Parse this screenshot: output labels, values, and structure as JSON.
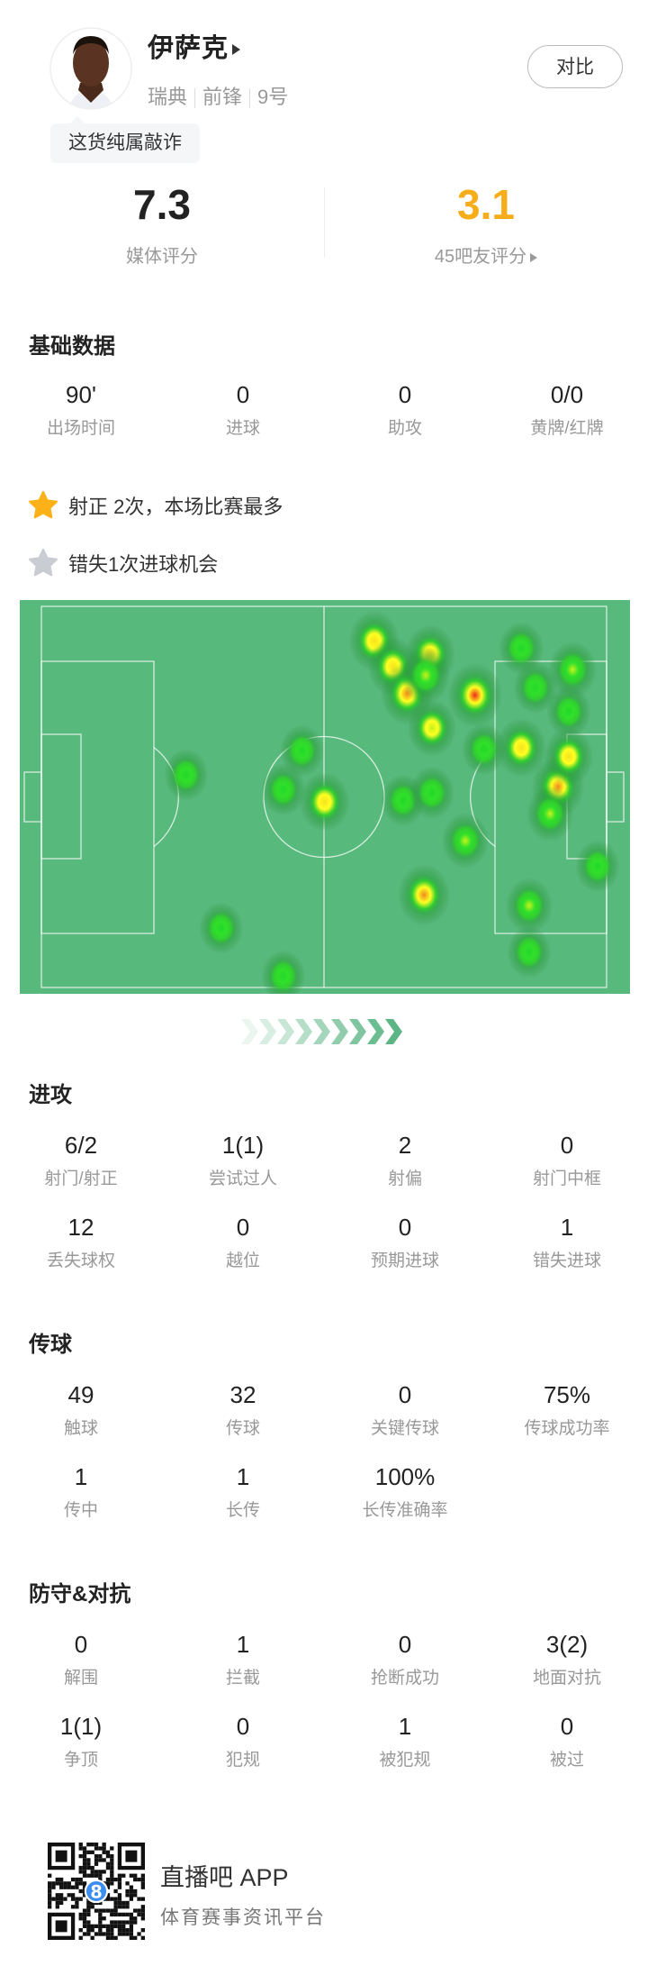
{
  "player": {
    "name": "伊萨克",
    "country": "瑞典",
    "position": "前锋",
    "number": "9号",
    "compare_label": "对比",
    "tag": "这货纯属敲诈"
  },
  "ratings": {
    "media": {
      "value": "7.3",
      "label": "媒体评分"
    },
    "fans": {
      "value": "3.1",
      "label": "45吧友评分",
      "color": "#f7ad19"
    }
  },
  "basic": {
    "title": "基础数据",
    "stats": [
      {
        "value": "90'",
        "label": "出场时间"
      },
      {
        "value": "0",
        "label": "进球"
      },
      {
        "value": "0",
        "label": "助攻"
      },
      {
        "value": "0/0",
        "label": "黄牌/红牌"
      }
    ]
  },
  "highlights": [
    {
      "icon": "star-gold-icon",
      "text": "射正 2次，本场比赛最多",
      "color": "#fbb117"
    },
    {
      "icon": "star-gray-icon",
      "text": "错失1次进球机会",
      "color": "#c9ccd3"
    }
  ],
  "heatmap": {
    "pitch_color": "#58b97c",
    "points": [
      {
        "x": 58.9,
        "y": 9.1,
        "i": 0.75
      },
      {
        "x": 62.2,
        "y": 15.8,
        "i": 0.7
      },
      {
        "x": 64.7,
        "y": 22.9,
        "i": 0.88
      },
      {
        "x": 68.8,
        "y": 12.6,
        "i": 0.72
      },
      {
        "x": 68.0,
        "y": 18.1,
        "i": 0.6
      },
      {
        "x": 76.7,
        "y": 23.3,
        "i": 1.0
      },
      {
        "x": 69.1,
        "y": 31.9,
        "i": 0.62
      },
      {
        "x": 84.9,
        "y": 37.1,
        "i": 0.72
      },
      {
        "x": 91.4,
        "y": 47.3,
        "i": 0.88
      },
      {
        "x": 93.3,
        "y": 39.4,
        "i": 0.65
      },
      {
        "x": 90.0,
        "y": 54.4,
        "i": 0.5
      },
      {
        "x": 94.0,
        "y": 16.6,
        "i": 0.55
      },
      {
        "x": 84.9,
        "y": 11.0,
        "i": 0.35
      },
      {
        "x": 87.4,
        "y": 21.3,
        "i": 0.3
      },
      {
        "x": 93.3,
        "y": 27.6,
        "i": 0.3
      },
      {
        "x": 78.3,
        "y": 37.5,
        "i": 0.3
      },
      {
        "x": 50.1,
        "y": 51.3,
        "i": 0.72
      },
      {
        "x": 46.1,
        "y": 37.9,
        "i": 0.3
      },
      {
        "x": 42.8,
        "y": 48.1,
        "i": 0.3
      },
      {
        "x": 25.6,
        "y": 44.2,
        "i": 0.3
      },
      {
        "x": 64.0,
        "y": 50.9,
        "i": 0.3
      },
      {
        "x": 69.1,
        "y": 48.9,
        "i": 0.35
      },
      {
        "x": 75.0,
        "y": 61.5,
        "i": 0.5
      },
      {
        "x": 67.7,
        "y": 75.7,
        "i": 0.85
      },
      {
        "x": 86.3,
        "y": 78.5,
        "i": 0.5
      },
      {
        "x": 98.4,
        "y": 68.2,
        "i": 0.3
      },
      {
        "x": 86.3,
        "y": 90.7,
        "i": 0.3
      },
      {
        "x": 31.8,
        "y": 84.4,
        "i": 0.3
      },
      {
        "x": 42.8,
        "y": 97.0,
        "i": 0.3
      }
    ]
  },
  "sections": [
    {
      "title": "进攻",
      "rows": [
        [
          {
            "value": "6/2",
            "label": "射门/射正"
          },
          {
            "value": "1(1)",
            "label": "尝试过人"
          },
          {
            "value": "2",
            "label": "射偏"
          },
          {
            "value": "0",
            "label": "射门中框"
          }
        ],
        [
          {
            "value": "12",
            "label": "丢失球权"
          },
          {
            "value": "0",
            "label": "越位"
          },
          {
            "value": "0",
            "label": "预期进球"
          },
          {
            "value": "1",
            "label": "错失进球"
          }
        ]
      ]
    },
    {
      "title": "传球",
      "rows": [
        [
          {
            "value": "49",
            "label": "触球"
          },
          {
            "value": "32",
            "label": "传球"
          },
          {
            "value": "0",
            "label": "关键传球"
          },
          {
            "value": "75%",
            "label": "传球成功率"
          }
        ],
        [
          {
            "value": "1",
            "label": "传中"
          },
          {
            "value": "1",
            "label": "长传"
          },
          {
            "value": "100%",
            "label": "长传准确率"
          }
        ]
      ]
    },
    {
      "title": "防守&对抗",
      "rows": [
        [
          {
            "value": "0",
            "label": "解围"
          },
          {
            "value": "1",
            "label": "拦截"
          },
          {
            "value": "0",
            "label": "抢断成功"
          },
          {
            "value": "3(2)",
            "label": "地面对抗"
          }
        ],
        [
          {
            "value": "1(1)",
            "label": "争顶"
          },
          {
            "value": "0",
            "label": "犯规"
          },
          {
            "value": "1",
            "label": "被犯规"
          },
          {
            "value": "0",
            "label": "被过"
          }
        ]
      ]
    }
  ],
  "footer": {
    "app_name": "直播吧 APP",
    "slogan": "体育赛事资讯平台",
    "qr_logo": "8"
  }
}
